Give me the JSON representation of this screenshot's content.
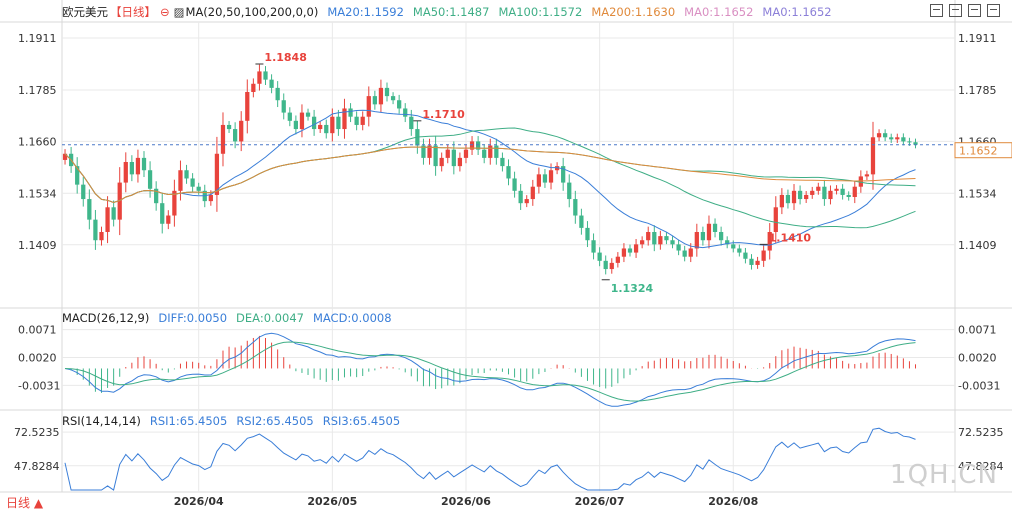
{
  "header": {
    "symbol": "欧元美元",
    "period": "【日线】",
    "ma_label": "MA(20,50,100,200,0,0)",
    "ma20": "MA20:1.1592",
    "ma50": "MA50:1.1487",
    "ma100": "MA100:1.1572",
    "ma200": "MA200:1.1630",
    "ma0a": "MA0:1.1652",
    "ma0b": "MA0:1.1652"
  },
  "macd_header": {
    "label": "MACD(26,12,9)",
    "diff": "DIFF:0.0050",
    "dea": "DEA:0.0047",
    "macd": "MACD:0.0008"
  },
  "rsi_header": {
    "label": "RSI(14,14,14)",
    "rsi1": "RSI1:65.4505",
    "rsi2": "RSI2:65.4505",
    "rsi3": "RSI3:65.4505"
  },
  "period_button": "日线 ▲",
  "watermark": "1QH.CN",
  "current_price_label": "1.1652",
  "colors": {
    "up": "#e8433c",
    "down": "#3fb68b",
    "ma20": "#3a7ed8",
    "ma50": "#3fae86",
    "ma100": "#3fae86",
    "ma200": "#e08a3c",
    "grid": "#e9e9e9",
    "price_line": "#4a78c8"
  },
  "chart_data": {
    "type": "candlestick",
    "price_axis": {
      "ticks": [
        "1.1911",
        "1.1785",
        "1.1660",
        "1.1534",
        "1.1409"
      ],
      "ylim": [
        1.127,
        1.195
      ]
    },
    "macd_axis": {
      "ticks": [
        "0.0071",
        "0.0020",
        "-0.0031"
      ]
    },
    "rsi_axis": {
      "ticks": [
        "72.5235",
        "47.8284"
      ]
    },
    "x_ticks": [
      "2026/04",
      "2026/05",
      "2026/06",
      "2026/07",
      "2026/08"
    ],
    "annotations": [
      {
        "text": "1.1848",
        "value": 1.1848
      },
      {
        "text": "1.1410",
        "value": 1.141
      },
      {
        "text": "1.1324",
        "value": 1.1324
      },
      {
        "text": "1.1710",
        "value": 1.171
      }
    ],
    "close": [
      1.163,
      1.16,
      1.1555,
      1.152,
      1.147,
      1.142,
      1.144,
      1.15,
      1.147,
      1.156,
      1.161,
      1.158,
      1.162,
      1.159,
      1.1545,
      1.151,
      1.146,
      1.148,
      1.154,
      1.159,
      1.157,
      1.155,
      1.154,
      1.1515,
      1.153,
      1.163,
      1.17,
      1.169,
      1.166,
      1.171,
      1.178,
      1.18,
      1.183,
      1.181,
      1.179,
      1.176,
      1.173,
      1.171,
      1.169,
      1.173,
      1.172,
      1.169,
      1.17,
      1.168,
      1.172,
      1.169,
      1.174,
      1.172,
      1.17,
      1.172,
      1.177,
      1.175,
      1.179,
      1.177,
      1.176,
      1.174,
      1.172,
      1.169,
      1.165,
      1.162,
      1.165,
      1.16,
      1.162,
      1.164,
      1.16,
      1.162,
      1.164,
      1.166,
      1.164,
      1.162,
      1.165,
      1.162,
      1.16,
      1.157,
      1.154,
      1.151,
      1.152,
      1.155,
      1.158,
      1.156,
      1.159,
      1.16,
      1.156,
      1.152,
      1.148,
      1.145,
      1.142,
      1.139,
      1.137,
      1.135,
      1.1365,
      1.138,
      1.14,
      1.139,
      1.141,
      1.142,
      1.144,
      1.141,
      1.143,
      1.142,
      1.141,
      1.1395,
      1.138,
      1.14,
      1.144,
      1.142,
      1.146,
      1.144,
      1.142,
      1.141,
      1.14,
      1.139,
      1.1375,
      1.136,
      1.137,
      1.1395,
      1.144,
      1.15,
      1.153,
      1.151,
      1.154,
      1.152,
      1.153,
      1.154,
      1.155,
      1.152,
      1.154,
      1.1545,
      1.153,
      1.1525,
      1.155,
      1.1575,
      1.158,
      1.167,
      1.168,
      1.167,
      1.1665,
      1.167,
      1.166,
      1.1658,
      1.1652
    ]
  }
}
